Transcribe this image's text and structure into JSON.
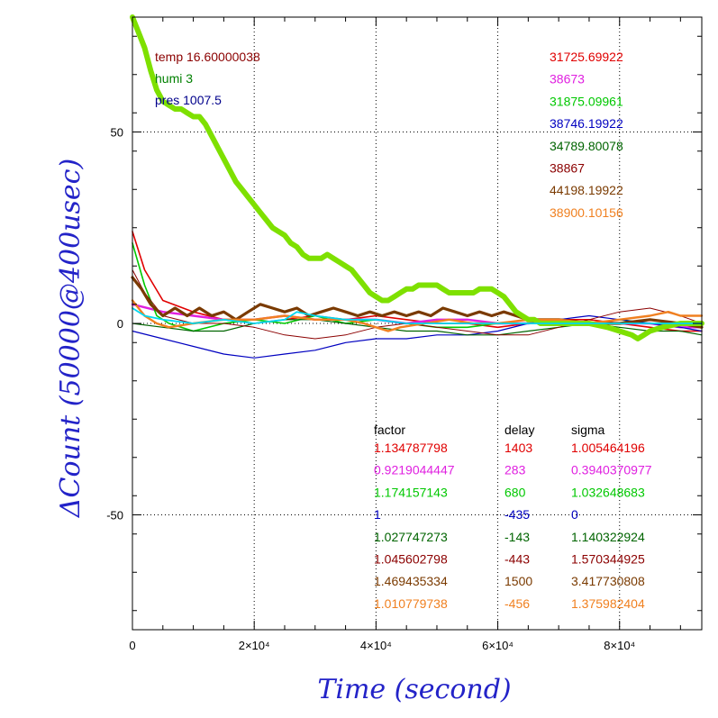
{
  "chart_data": {
    "type": "line",
    "xlabel": "Time (second)",
    "ylabel": "ΔCount (50000@400usec)",
    "xlim": [
      0,
      93500
    ],
    "ylim": [
      -80,
      80
    ],
    "x_ticks": [
      {
        "value": 0,
        "label": "0"
      },
      {
        "value": 20000,
        "label": "2×10⁴"
      },
      {
        "value": 40000,
        "label": "4×10⁴"
      },
      {
        "value": 60000,
        "label": "6×10⁴"
      },
      {
        "value": 80000,
        "label": "8×10⁴"
      }
    ],
    "y_ticks": [
      {
        "value": 50,
        "label": "50"
      },
      {
        "value": 0,
        "label": "0"
      },
      {
        "value": -50,
        "label": "-50"
      }
    ],
    "grid": true,
    "env": [
      {
        "text": "temp 16.60000038",
        "color": "#8b0000"
      },
      {
        "text": "humi 3",
        "color": "#008000"
      },
      {
        "text": "pres 1007.5",
        "color": "#00008b"
      }
    ],
    "baselines": [
      "31725.69922",
      "38673",
      "31875.09961",
      "38746.19922",
      "34789.80078",
      "38867",
      "44198.19922",
      "38900.10156"
    ],
    "table_headers": [
      "factor",
      "delay",
      "sigma"
    ],
    "table": [
      [
        "1.134787798",
        "1403",
        "1.005464196"
      ],
      [
        "0.9219044447",
        "283",
        "0.3940370977"
      ],
      [
        "1.174157143",
        "680",
        "1.032648683"
      ],
      [
        "1",
        "-435",
        "0"
      ],
      [
        "1.027747273",
        "-143",
        "1.140322924"
      ],
      [
        "1.045602798",
        "-443",
        "1.570344925"
      ],
      [
        "1.469435334",
        "1500",
        "3.417730808"
      ],
      [
        "1.010779738",
        "-456",
        "1.375982404"
      ]
    ],
    "series": [
      {
        "color": "#e00000",
        "width": 1.6,
        "points": [
          [
            0,
            24
          ],
          [
            2000,
            14
          ],
          [
            5000,
            6
          ],
          [
            10000,
            3
          ],
          [
            15000,
            1
          ],
          [
            20000,
            0
          ],
          [
            25000,
            1
          ],
          [
            30000,
            2
          ],
          [
            35000,
            1
          ],
          [
            40000,
            2
          ],
          [
            45000,
            1
          ],
          [
            50000,
            0
          ],
          [
            55000,
            0
          ],
          [
            60000,
            -1
          ],
          [
            65000,
            0
          ],
          [
            70000,
            1
          ],
          [
            75000,
            1
          ],
          [
            80000,
            0
          ],
          [
            85000,
            -1
          ],
          [
            90000,
            -2
          ],
          [
            93500,
            -2
          ]
        ]
      },
      {
        "color": "#e020e0",
        "width": 2.4,
        "points": [
          [
            0,
            5
          ],
          [
            5000,
            3
          ],
          [
            10000,
            2
          ],
          [
            15000,
            1
          ],
          [
            20000,
            1
          ],
          [
            25000,
            2
          ],
          [
            30000,
            1
          ],
          [
            35000,
            1
          ],
          [
            40000,
            1
          ],
          [
            45000,
            0
          ],
          [
            50000,
            1
          ],
          [
            55000,
            1
          ],
          [
            60000,
            0
          ],
          [
            65000,
            0
          ],
          [
            70000,
            1
          ],
          [
            75000,
            0
          ],
          [
            80000,
            0
          ],
          [
            85000,
            0
          ],
          [
            90000,
            -1
          ],
          [
            93500,
            -1
          ]
        ]
      },
      {
        "color": "#00c800",
        "width": 1.6,
        "points": [
          [
            0,
            21
          ],
          [
            2000,
            10
          ],
          [
            4000,
            2
          ],
          [
            6000,
            0
          ],
          [
            10000,
            -2
          ],
          [
            15000,
            0
          ],
          [
            20000,
            1
          ],
          [
            25000,
            0
          ],
          [
            30000,
            2
          ],
          [
            35000,
            0
          ],
          [
            40000,
            1
          ],
          [
            45000,
            0
          ],
          [
            50000,
            -1
          ],
          [
            55000,
            -1
          ],
          [
            60000,
            0
          ],
          [
            65000,
            0
          ],
          [
            70000,
            0
          ],
          [
            75000,
            0
          ],
          [
            80000,
            1
          ],
          [
            85000,
            0
          ],
          [
            90000,
            0
          ],
          [
            93500,
            -1
          ]
        ]
      },
      {
        "color": "#0000c0",
        "width": 1.2,
        "points": [
          [
            0,
            -2
          ],
          [
            5000,
            -4
          ],
          [
            10000,
            -6
          ],
          [
            15000,
            -8
          ],
          [
            20000,
            -9
          ],
          [
            25000,
            -8
          ],
          [
            30000,
            -7
          ],
          [
            35000,
            -5
          ],
          [
            40000,
            -4
          ],
          [
            45000,
            -4
          ],
          [
            50000,
            -3
          ],
          [
            55000,
            -3
          ],
          [
            60000,
            -2
          ],
          [
            65000,
            0
          ],
          [
            70000,
            1
          ],
          [
            75000,
            2
          ],
          [
            80000,
            1
          ],
          [
            85000,
            0
          ],
          [
            90000,
            -1
          ],
          [
            93500,
            -2
          ]
        ]
      },
      {
        "color": "#006400",
        "width": 1.2,
        "points": [
          [
            0,
            0
          ],
          [
            5000,
            -1
          ],
          [
            10000,
            -2
          ],
          [
            15000,
            -2
          ],
          [
            20000,
            0
          ],
          [
            25000,
            1
          ],
          [
            30000,
            1
          ],
          [
            35000,
            0
          ],
          [
            40000,
            -1
          ],
          [
            45000,
            -2
          ],
          [
            50000,
            -2
          ],
          [
            55000,
            -3
          ],
          [
            60000,
            -3
          ],
          [
            65000,
            -2
          ],
          [
            70000,
            -1
          ],
          [
            75000,
            0
          ],
          [
            80000,
            -1
          ],
          [
            85000,
            -2
          ],
          [
            90000,
            -2
          ],
          [
            93500,
            -3
          ]
        ]
      },
      {
        "color": "#8b0000",
        "width": 1.0,
        "points": [
          [
            0,
            14
          ],
          [
            2000,
            8
          ],
          [
            5000,
            2
          ],
          [
            10000,
            0
          ],
          [
            15000,
            0
          ],
          [
            20000,
            -1
          ],
          [
            25000,
            -3
          ],
          [
            30000,
            -4
          ],
          [
            35000,
            -3
          ],
          [
            40000,
            -1
          ],
          [
            45000,
            0
          ],
          [
            50000,
            -1
          ],
          [
            55000,
            -2
          ],
          [
            60000,
            -3
          ],
          [
            65000,
            -3
          ],
          [
            70000,
            -1
          ],
          [
            75000,
            1
          ],
          [
            80000,
            3
          ],
          [
            85000,
            4
          ],
          [
            90000,
            2
          ],
          [
            93500,
            0
          ]
        ]
      },
      {
        "color": "#7a3a00",
        "width": 3.2,
        "points": [
          [
            0,
            12
          ],
          [
            1500,
            9
          ],
          [
            3000,
            5
          ],
          [
            5000,
            2
          ],
          [
            7000,
            4
          ],
          [
            9000,
            2
          ],
          [
            11000,
            4
          ],
          [
            13000,
            2
          ],
          [
            15000,
            3
          ],
          [
            17000,
            1
          ],
          [
            19000,
            3
          ],
          [
            21000,
            5
          ],
          [
            23000,
            4
          ],
          [
            25000,
            3
          ],
          [
            27000,
            4
          ],
          [
            29000,
            2
          ],
          [
            31000,
            3
          ],
          [
            33000,
            4
          ],
          [
            35000,
            3
          ],
          [
            37000,
            2
          ],
          [
            39000,
            3
          ],
          [
            41000,
            2
          ],
          [
            43000,
            3
          ],
          [
            45000,
            2
          ],
          [
            47000,
            3
          ],
          [
            49000,
            2
          ],
          [
            51000,
            4
          ],
          [
            53000,
            3
          ],
          [
            55000,
            2
          ],
          [
            57000,
            3
          ],
          [
            59000,
            2
          ],
          [
            61000,
            3
          ],
          [
            63000,
            2
          ],
          [
            65000,
            1
          ],
          [
            70000,
            1
          ],
          [
            75000,
            0
          ],
          [
            80000,
            0
          ],
          [
            85000,
            1
          ],
          [
            90000,
            0
          ],
          [
            93500,
            -1
          ]
        ]
      },
      {
        "color": "#f08020",
        "width": 2.4,
        "points": [
          [
            0,
            6
          ],
          [
            2000,
            2
          ],
          [
            4000,
            0
          ],
          [
            6000,
            -1
          ],
          [
            10000,
            0
          ],
          [
            15000,
            1
          ],
          [
            20000,
            1
          ],
          [
            25000,
            2
          ],
          [
            30000,
            1
          ],
          [
            35000,
            1
          ],
          [
            38000,
            0
          ],
          [
            40000,
            -1
          ],
          [
            42000,
            -2
          ],
          [
            44000,
            -1
          ],
          [
            48000,
            0
          ],
          [
            52000,
            1
          ],
          [
            56000,
            0
          ],
          [
            60000,
            0
          ],
          [
            65000,
            1
          ],
          [
            70000,
            1
          ],
          [
            75000,
            0
          ],
          [
            80000,
            1
          ],
          [
            85000,
            2
          ],
          [
            88000,
            3
          ],
          [
            90000,
            2
          ],
          [
            93500,
            2
          ]
        ]
      },
      {
        "color": "#7ee000",
        "width": 6,
        "points": [
          [
            0,
            80
          ],
          [
            1000,
            76
          ],
          [
            2000,
            72
          ],
          [
            3000,
            66
          ],
          [
            4000,
            61
          ],
          [
            5000,
            58
          ],
          [
            6000,
            57
          ],
          [
            7000,
            56
          ],
          [
            8000,
            56
          ],
          [
            9000,
            55
          ],
          [
            10000,
            54
          ],
          [
            11000,
            54
          ],
          [
            12000,
            52
          ],
          [
            13000,
            49
          ],
          [
            14000,
            46
          ],
          [
            15000,
            43
          ],
          [
            16000,
            40
          ],
          [
            17000,
            37
          ],
          [
            18000,
            35
          ],
          [
            19000,
            33
          ],
          [
            20000,
            31
          ],
          [
            21000,
            29
          ],
          [
            22000,
            27
          ],
          [
            23000,
            25
          ],
          [
            24000,
            24
          ],
          [
            25000,
            23
          ],
          [
            26000,
            21
          ],
          [
            27000,
            20
          ],
          [
            28000,
            18
          ],
          [
            29000,
            17
          ],
          [
            30000,
            17
          ],
          [
            31000,
            17
          ],
          [
            32000,
            18
          ],
          [
            33000,
            17
          ],
          [
            34000,
            16
          ],
          [
            35000,
            15
          ],
          [
            36000,
            14
          ],
          [
            37000,
            12
          ],
          [
            38000,
            10
          ],
          [
            39000,
            8
          ],
          [
            40000,
            7
          ],
          [
            41000,
            6
          ],
          [
            42000,
            6
          ],
          [
            43000,
            7
          ],
          [
            44000,
            8
          ],
          [
            45000,
            9
          ],
          [
            46000,
            9
          ],
          [
            47000,
            10
          ],
          [
            48000,
            10
          ],
          [
            49000,
            10
          ],
          [
            50000,
            10
          ],
          [
            51000,
            9
          ],
          [
            52000,
            8
          ],
          [
            53000,
            8
          ],
          [
            54000,
            8
          ],
          [
            55000,
            8
          ],
          [
            56000,
            8
          ],
          [
            57000,
            9
          ],
          [
            58000,
            9
          ],
          [
            59000,
            9
          ],
          [
            60000,
            8
          ],
          [
            61000,
            7
          ],
          [
            62000,
            5
          ],
          [
            63000,
            3
          ],
          [
            64000,
            2
          ],
          [
            65000,
            1
          ],
          [
            66000,
            1
          ],
          [
            67000,
            0
          ],
          [
            68000,
            0
          ],
          [
            70000,
            0
          ],
          [
            72000,
            0
          ],
          [
            75000,
            0
          ],
          [
            78000,
            -1
          ],
          [
            80000,
            -2
          ],
          [
            82000,
            -3
          ],
          [
            83000,
            -4
          ],
          [
            84000,
            -3
          ],
          [
            85000,
            -2
          ],
          [
            87000,
            -1
          ],
          [
            90000,
            0
          ],
          [
            93500,
            0
          ]
        ]
      },
      {
        "color": "#00d8f0",
        "width": 1.8,
        "points": [
          [
            0,
            4
          ],
          [
            2000,
            2
          ],
          [
            5000,
            1
          ],
          [
            10000,
            0
          ],
          [
            15000,
            1
          ],
          [
            20000,
            0
          ],
          [
            25000,
            1
          ],
          [
            27000,
            3
          ],
          [
            30000,
            2
          ],
          [
            35000,
            1
          ],
          [
            40000,
            1
          ],
          [
            45000,
            0
          ],
          [
            50000,
            0
          ],
          [
            55000,
            0
          ],
          [
            60000,
            0
          ],
          [
            65000,
            0
          ],
          [
            70000,
            0
          ],
          [
            75000,
            0
          ],
          [
            80000,
            0
          ],
          [
            85000,
            0
          ],
          [
            90000,
            0
          ],
          [
            93500,
            0
          ]
        ]
      }
    ]
  }
}
